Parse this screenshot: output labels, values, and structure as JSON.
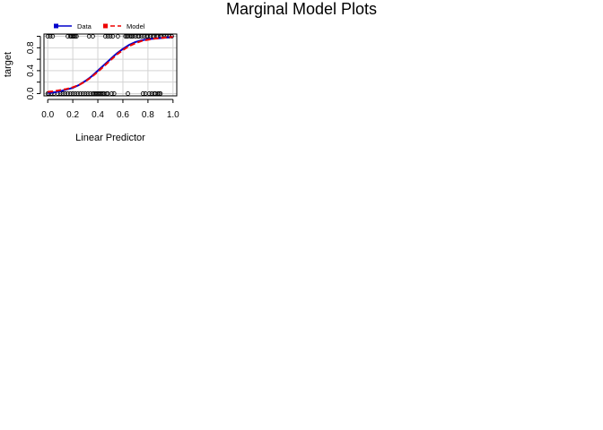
{
  "chart_data": {
    "type": "line",
    "title": "Marginal Model Plots",
    "xlabel": "Linear Predictor",
    "ylabel": "target",
    "xlim": [
      -0.03,
      1.03
    ],
    "ylim": [
      -0.04,
      1.04
    ],
    "x_ticks": [
      "0.0",
      "0.2",
      "0.4",
      "0.6",
      "0.8",
      "1.0"
    ],
    "y_ticks": [
      "0.0",
      "0.4",
      "0.8"
    ],
    "grid": true,
    "legend_position": "top-left",
    "legend": [
      {
        "name": "Data",
        "color": "#0000cc",
        "style": "solid"
      },
      {
        "name": "Model",
        "color": "#ee0000",
        "style": "dashed"
      }
    ],
    "series": [
      {
        "name": "Data",
        "color": "#0000cc",
        "x": [
          0.0,
          0.05,
          0.1,
          0.15,
          0.2,
          0.25,
          0.3,
          0.35,
          0.4,
          0.45,
          0.5,
          0.55,
          0.6,
          0.65,
          0.7,
          0.75,
          0.8,
          0.85,
          0.9,
          0.95,
          1.0
        ],
        "y": [
          0.01,
          0.02,
          0.04,
          0.07,
          0.1,
          0.15,
          0.22,
          0.3,
          0.4,
          0.5,
          0.6,
          0.7,
          0.78,
          0.85,
          0.9,
          0.93,
          0.95,
          0.96,
          0.97,
          0.98,
          0.99
        ]
      },
      {
        "name": "Model",
        "color": "#ee0000",
        "x": [
          0.0,
          0.05,
          0.1,
          0.15,
          0.2,
          0.25,
          0.3,
          0.35,
          0.4,
          0.45,
          0.5,
          0.55,
          0.6,
          0.65,
          0.7,
          0.75,
          0.8,
          0.85,
          0.9,
          0.95,
          1.0
        ],
        "y": [
          0.03,
          0.04,
          0.06,
          0.08,
          0.11,
          0.15,
          0.21,
          0.29,
          0.38,
          0.48,
          0.58,
          0.68,
          0.76,
          0.83,
          0.88,
          0.92,
          0.94,
          0.96,
          0.97,
          0.98,
          0.99
        ]
      }
    ],
    "points": {
      "style": "open-circle",
      "y1_x": [
        0.0,
        0.02,
        0.04,
        0.16,
        0.18,
        0.19,
        0.2,
        0.21,
        0.22,
        0.23,
        0.33,
        0.36,
        0.46,
        0.48,
        0.5,
        0.52,
        0.56,
        0.62,
        0.63,
        0.64,
        0.66,
        0.67,
        0.68,
        0.7,
        0.72,
        0.73,
        0.75,
        0.77,
        0.79,
        0.8,
        0.82,
        0.84,
        0.85,
        0.87,
        0.88,
        0.9,
        0.91,
        0.93,
        0.95,
        0.97,
        0.99
      ],
      "y0_x": [
        0.0,
        0.01,
        0.03,
        0.05,
        0.08,
        0.1,
        0.12,
        0.14,
        0.16,
        0.18,
        0.2,
        0.22,
        0.24,
        0.26,
        0.28,
        0.3,
        0.32,
        0.34,
        0.36,
        0.37,
        0.38,
        0.39,
        0.4,
        0.41,
        0.42,
        0.43,
        0.44,
        0.45,
        0.47,
        0.48,
        0.51,
        0.53,
        0.64,
        0.76,
        0.78,
        0.81,
        0.83,
        0.85,
        0.86,
        0.88,
        0.89,
        0.9
      ]
    }
  }
}
